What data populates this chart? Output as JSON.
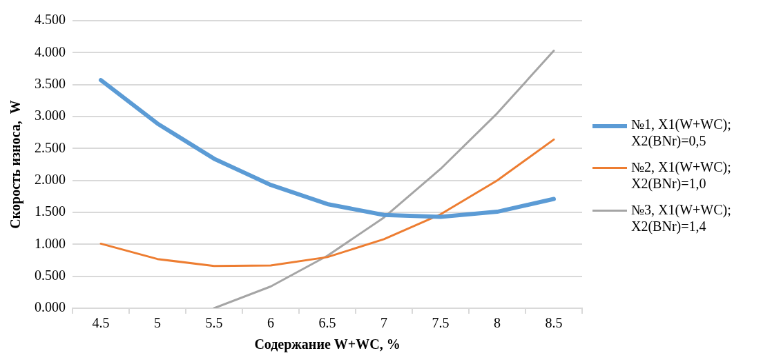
{
  "chart_data": {
    "type": "line",
    "xlabel": "Содержание W+WC, %",
    "ylabel": "Скорость износа,  W",
    "categories": [
      "4.5",
      "5",
      "5.5",
      "6",
      "6.5",
      "7",
      "7.5",
      "8",
      "8.5"
    ],
    "series": [
      {
        "name": "№1, X1(W+WC); X2(BNr)=0,5",
        "color": "#5b9bd5",
        "values": [
          3.57,
          2.89,
          2.34,
          1.93,
          1.63,
          1.46,
          1.43,
          1.51,
          1.71
        ]
      },
      {
        "name": "№2, X1(W+WC); X2(BNr)=1,0",
        "color": "#ed7d31",
        "values": [
          1.01,
          0.77,
          0.66,
          0.67,
          0.8,
          1.08,
          1.47,
          2.0,
          2.64
        ]
      },
      {
        "name": "№3, X1(W+WC); X2(BNr)=1,4",
        "color": "#a5a5a5",
        "values": [
          null,
          null,
          0,
          0.34,
          0.82,
          1.42,
          2.18,
          3.05,
          4.03
        ]
      }
    ],
    "ylim": [
      0,
      4.5
    ],
    "yticks": [
      {
        "value": 0,
        "label": "0.000"
      },
      {
        "value": 0.5,
        "label": "0.500"
      },
      {
        "value": 1,
        "label": "1.000"
      },
      {
        "value": 1.5,
        "label": "1.500"
      },
      {
        "value": 2,
        "label": "2.000"
      },
      {
        "value": 2.5,
        "label": "2.500"
      },
      {
        "value": 3,
        "label": "3.000"
      },
      {
        "value": 3.5,
        "label": "3.500"
      },
      {
        "value": 4,
        "label": "4.000"
      },
      {
        "value": 4.5,
        "label": "4.500"
      }
    ],
    "grid": "y",
    "legend": "right",
    "marker": "none",
    "line_style": "solid"
  }
}
